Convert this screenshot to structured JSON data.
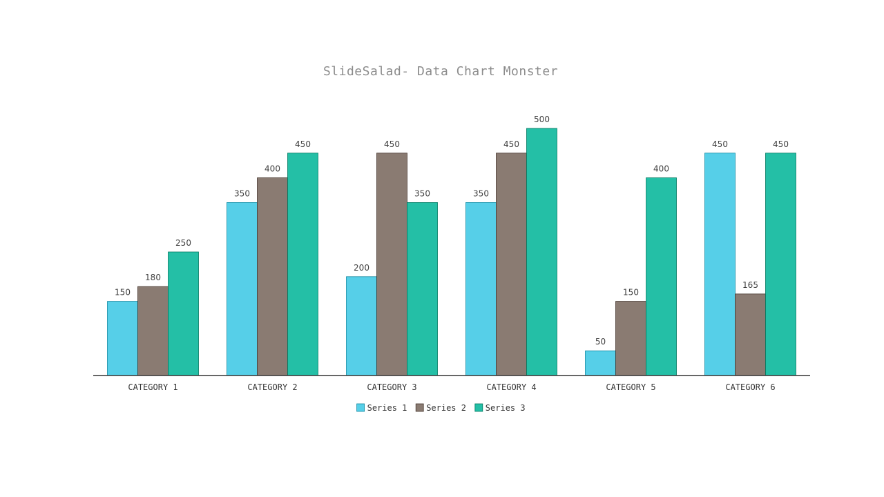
{
  "chart_data": {
    "type": "bar",
    "title": "SlideSalad- Data Chart Monster",
    "categories": [
      "CATEGORY 1",
      "CATEGORY 2",
      "CATEGORY 3",
      "CATEGORY 4",
      "CATEGORY 5",
      "CATEGORY 6"
    ],
    "series": [
      {
        "name": "Series 1",
        "color": "#56cfe8",
        "values": [
          150,
          350,
          200,
          350,
          50,
          450
        ]
      },
      {
        "name": "Series 2",
        "color": "#8a7b72",
        "values": [
          180,
          400,
          450,
          450,
          150,
          165
        ]
      },
      {
        "name": "Series 3",
        "color": "#24bfa6",
        "values": [
          250,
          450,
          350,
          500,
          400,
          450
        ]
      }
    ],
    "ylim": [
      0,
      500
    ],
    "grid": false,
    "data_labels": true,
    "legend_position": "bottom",
    "xlabel": "",
    "ylabel": ""
  }
}
